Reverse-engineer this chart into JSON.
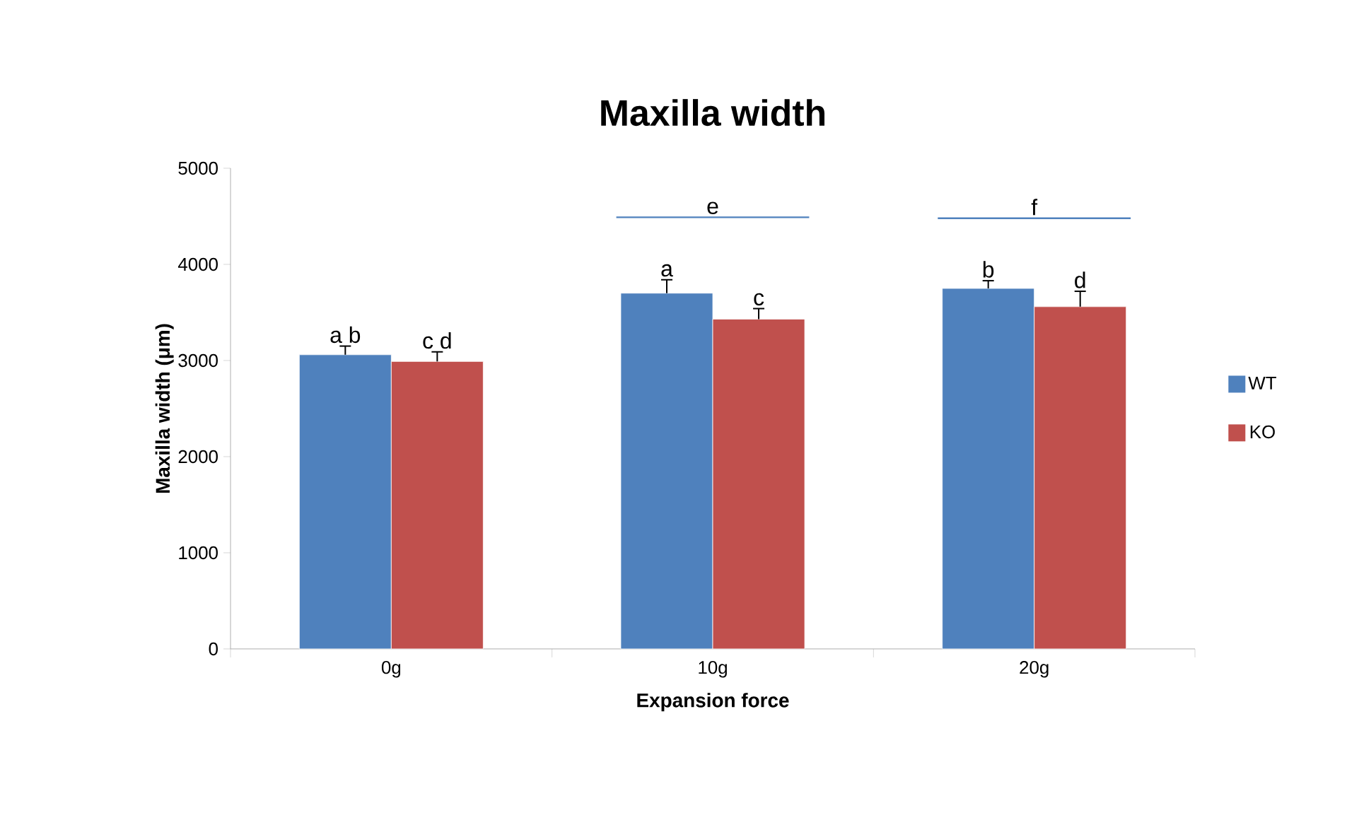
{
  "chart_data": {
    "type": "bar",
    "title": "Maxilla width",
    "xlabel": "Expansion force",
    "ylabel": "Maxilla width (μm)",
    "categories": [
      "0g",
      "10g",
      "20g"
    ],
    "series": [
      {
        "name": "WT",
        "color": "#4f81bd",
        "values": [
          3060,
          3700,
          3750
        ],
        "errors": [
          90,
          140,
          80
        ],
        "value_labels": [
          "a b",
          "a",
          "b"
        ]
      },
      {
        "name": "KO",
        "color": "#c0504d",
        "values": [
          2990,
          3430,
          3560
        ],
        "errors": [
          100,
          110,
          160
        ],
        "value_labels": [
          "c d",
          "c",
          "d"
        ]
      }
    ],
    "ylim": [
      0,
      5000
    ],
    "yticks": [
      0,
      1000,
      2000,
      3000,
      4000,
      5000
    ],
    "annotations": [
      "e",
      "f"
    ],
    "grid": false,
    "legend": "right"
  }
}
